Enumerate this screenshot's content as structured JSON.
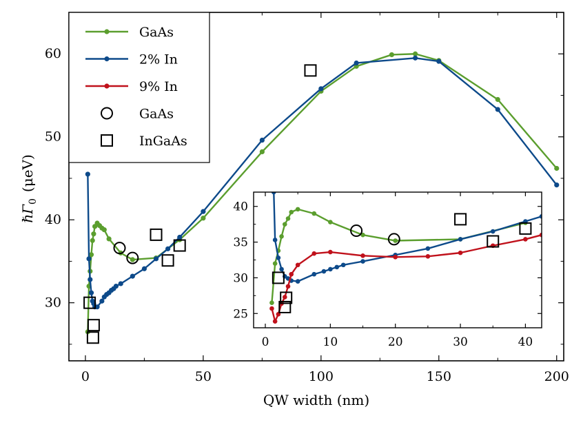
{
  "chart_data": [
    {
      "type": "line",
      "panel": "main",
      "xlabel": "QW width (nm)",
      "ylabel": "ℏΓ",
      "ylabel_sub": "0",
      "ylabel_unit": "(μeV)",
      "xlim": [
        -7,
        203
      ],
      "ylim": [
        23,
        65
      ],
      "xticks": [
        0,
        50,
        100,
        150,
        200
      ],
      "xtick_labels": [
        "0",
        "50",
        "100",
        "150",
        "200"
      ],
      "yticks": [
        30,
        40,
        50,
        60
      ],
      "ytick_labels": [
        "30",
        "40",
        "50",
        "60"
      ],
      "legend_position": "top-left",
      "legend": [
        "GaAs",
        "2% In",
        "9% In",
        "GaAs",
        "InGaAs"
      ],
      "series": [
        {
          "name": "GaAs",
          "color": "#5b9e2e",
          "x": [
            1,
            1.5,
            2,
            2.5,
            3,
            3.5,
            4,
            5,
            6,
            7,
            8,
            10,
            15,
            20,
            30,
            40,
            50,
            75,
            100,
            115,
            130,
            140,
            150,
            175,
            200
          ],
          "y": [
            26.5,
            32.0,
            33.8,
            35.8,
            37.5,
            38.3,
            39.2,
            39.6,
            39.3,
            39.0,
            38.8,
            37.7,
            36.0,
            35.2,
            35.4,
            37.6,
            40.2,
            48.2,
            55.5,
            58.5,
            59.9,
            60.0,
            59.2,
            54.5,
            46.2
          ]
        },
        {
          "name": "2% In",
          "color": "#0d4a8a",
          "x": [
            1,
            1.5,
            2,
            2.5,
            3,
            3.5,
            4,
            5,
            7,
            8,
            9,
            10,
            11,
            12,
            13,
            15,
            20,
            25,
            30,
            35,
            40,
            50,
            75,
            100,
            115,
            140,
            150,
            175,
            200
          ],
          "y": [
            45.5,
            35.3,
            32.8,
            31.2,
            30.2,
            29.9,
            29.5,
            29.5,
            30.2,
            30.7,
            31.0,
            31.2,
            31.5,
            31.7,
            32.0,
            32.3,
            33.2,
            34.1,
            35.3,
            36.5,
            37.9,
            41.0,
            49.6,
            55.8,
            58.9,
            59.5,
            59.1,
            53.3,
            44.2
          ]
        },
        {
          "name": "GaAs",
          "marker": "circle",
          "x": [
            14.5,
            20
          ],
          "y": [
            36.6,
            35.4
          ]
        },
        {
          "name": "InGaAs",
          "marker": "square",
          "x": [
            1.8,
            3.2,
            3.5,
            30,
            35,
            40,
            95.5
          ],
          "y": [
            30.0,
            25.8,
            27.3,
            38.2,
            35.1,
            36.9,
            58.0
          ]
        }
      ]
    },
    {
      "type": "line",
      "panel": "inset",
      "xlim": [
        -1.8,
        42.5
      ],
      "ylim": [
        23,
        42
      ],
      "xticks": [
        0,
        10,
        20,
        30,
        40
      ],
      "xtick_labels": [
        "0",
        "10",
        "20",
        "30",
        "40"
      ],
      "yticks": [
        25,
        30,
        35,
        40
      ],
      "ytick_labels": [
        "25",
        "30",
        "35",
        "40"
      ],
      "series": [
        {
          "name": "GaAs",
          "color": "#5b9e2e",
          "x": [
            1,
            1.5,
            2,
            2.5,
            3,
            3.5,
            4,
            5,
            7.5,
            10,
            15,
            20,
            30,
            40
          ],
          "y": [
            26.5,
            32.0,
            33.8,
            35.8,
            37.5,
            38.3,
            39.2,
            39.6,
            39.0,
            37.8,
            36.0,
            35.2,
            35.4,
            37.7
          ]
        },
        {
          "name": "2% In",
          "color": "#0d4a8a",
          "x": [
            1.3,
            1.5,
            2,
            2.5,
            3,
            3.5,
            4,
            5,
            7.5,
            9,
            10,
            11,
            12,
            15,
            20,
            25,
            30,
            35,
            40,
            42.5
          ],
          "y": [
            42.0,
            35.3,
            32.8,
            31.2,
            30.2,
            29.9,
            29.6,
            29.5,
            30.5,
            30.9,
            31.2,
            31.5,
            31.8,
            32.3,
            33.2,
            34.1,
            35.4,
            36.5,
            37.9,
            38.6
          ]
        },
        {
          "name": "9% In",
          "color": "#c0111b",
          "x": [
            1,
            1.5,
            2,
            2.5,
            3,
            3.5,
            4,
            5,
            7.5,
            10,
            15,
            20,
            25,
            30,
            35,
            40,
            42.5
          ],
          "y": [
            25.7,
            23.9,
            24.9,
            26.4,
            27.3,
            28.8,
            30.5,
            31.8,
            33.4,
            33.6,
            33.1,
            32.9,
            33.0,
            33.5,
            34.5,
            35.4,
            36.0
          ]
        },
        {
          "name": "GaAs",
          "marker": "circle",
          "x": [
            14,
            19.8
          ],
          "y": [
            36.6,
            35.4
          ]
        },
        {
          "name": "InGaAs",
          "marker": "square",
          "x": [
            2,
            3,
            3.2,
            30,
            35,
            40
          ],
          "y": [
            30.0,
            25.9,
            27.2,
            38.2,
            35.1,
            36.9
          ]
        }
      ]
    }
  ]
}
